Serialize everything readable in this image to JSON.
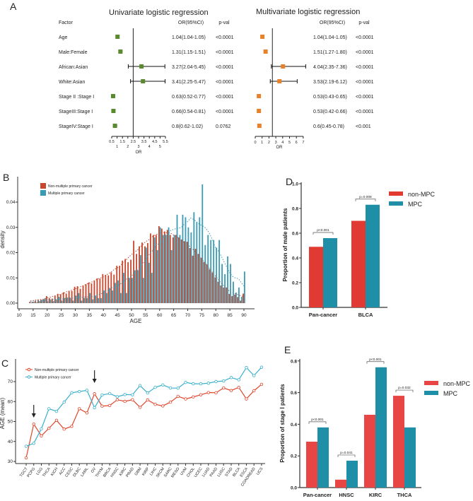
{
  "panel_letters": [
    "A",
    "B",
    "C",
    "D",
    "E"
  ],
  "chart_data": [
    {
      "id": "A-univariate",
      "type": "forest",
      "title": "Univariate logistic regression",
      "title_color": "#3f7f2f",
      "marker_color": "#5a8a2e",
      "headers": {
        "factor": "Factor",
        "or": "OR(95%CI)",
        "p": "p-val"
      },
      "xlabel": "OR",
      "xticks": [
        "0.5",
        "1",
        "1.5",
        "2",
        "2.5",
        "3",
        "3.5",
        "4",
        "4.5",
        "5",
        "5.5"
      ],
      "xlim": [
        0.5,
        5.5
      ],
      "reference_line": 2.5,
      "rows": [
        {
          "factor": "Age",
          "or": 1.04,
          "lo": 1.04,
          "hi": 1.05,
          "or_text": "1.04(1.04-1.05)",
          "p": "<0.0001"
        },
        {
          "factor": "Male:Female",
          "or": 1.31,
          "lo": 1.15,
          "hi": 1.51,
          "or_text": "1.31(1.15-1.51)",
          "p": "<0.0001"
        },
        {
          "factor": "African:Asian",
          "or": 3.27,
          "lo": 2.04,
          "hi": 5.45,
          "or_text": "3.27(2.04-5.45)",
          "p": "<0.0001"
        },
        {
          "factor": "White:Asian",
          "or": 3.41,
          "lo": 2.25,
          "hi": 5.47,
          "or_text": "3.41(2.25-5.47)",
          "p": "<0.0001"
        },
        {
          "factor": "Stage II :Stage I",
          "or": 0.63,
          "lo": 0.52,
          "hi": 0.77,
          "or_text": "0.63(0.52-0.77)",
          "p": "<0.0001"
        },
        {
          "factor": "StageIII:Stage I",
          "or": 0.66,
          "lo": 0.54,
          "hi": 0.81,
          "or_text": "0.66(0.54-0.81)",
          "p": "<0.0001"
        },
        {
          "factor": "StageIV:Stage I",
          "or": 0.8,
          "lo": 0.62,
          "hi": 1.02,
          "or_text": "0.8(0.62-1.02)",
          "p": "0.0762"
        }
      ]
    },
    {
      "id": "A-multivariate",
      "type": "forest",
      "title": "Multivariate logistic regression",
      "title_color": "#e8703a",
      "marker_color": "#e8822a",
      "headers": {
        "or": "OR(95%CI)",
        "p": "p-val"
      },
      "xlabel": "OR",
      "xticks": [
        "0",
        "1",
        "2",
        "3",
        "4",
        "5",
        "6",
        "7"
      ],
      "xlim": [
        0,
        7
      ],
      "reference_line": 2.5,
      "rows": [
        {
          "or": 1.04,
          "lo": 1.04,
          "hi": 1.05,
          "or_text": "1.04(1.04-1.05)",
          "p": "<0.0001"
        },
        {
          "or": 1.51,
          "lo": 1.27,
          "hi": 1.8,
          "or_text": "1.51(1.27-1.80)",
          "p": "<0.0001"
        },
        {
          "or": 4.04,
          "lo": 2.35,
          "hi": 7.36,
          "or_text": "4.04(2.35-7.36)",
          "p": "<0.0001"
        },
        {
          "or": 3.53,
          "lo": 2.19,
          "hi": 6.12,
          "or_text": "3.53(2.19-6.12)",
          "p": "<0.0001"
        },
        {
          "or": 0.53,
          "lo": 0.43,
          "hi": 0.65,
          "or_text": "0.53(0.43-0.65)",
          "p": "<0.0001"
        },
        {
          "or": 0.53,
          "lo": 0.42,
          "hi": 0.66,
          "or_text": "0.53(0.42-0.66)",
          "p": "<0.0001"
        },
        {
          "or": 0.6,
          "lo": 0.45,
          "hi": 0.78,
          "or_text": "0.6(0.45-0.78)",
          "p": "<0.001"
        }
      ]
    },
    {
      "id": "B",
      "type": "bar",
      "xlabel": "AGE",
      "ylabel": "density",
      "xlim": [
        10,
        92
      ],
      "ylim": [
        0,
        0.047
      ],
      "xticks": [
        10,
        15,
        20,
        25,
        30,
        35,
        40,
        45,
        50,
        55,
        60,
        65,
        70,
        75,
        80,
        85,
        90
      ],
      "yticks": [
        "0.00",
        "0.01",
        "0.02",
        "0.03",
        "0.04"
      ],
      "ytick_values": [
        0,
        0.01,
        0.02,
        0.03,
        0.04
      ],
      "legend_position": "top-left",
      "x_start": 14,
      "series": [
        {
          "name": "Non-multiple primary cancer",
          "color": "#c8462c",
          "values": [
            0.0005,
            0.0005,
            0.001,
            0.0013,
            0.0013,
            0.0015,
            0.0028,
            0.002,
            0.0018,
            0.003,
            0.0037,
            0.0035,
            0.0043,
            0.0038,
            0.0047,
            0.0048,
            0.0065,
            0.0067,
            0.0057,
            0.007,
            0.0075,
            0.0082,
            0.0078,
            0.0088,
            0.0098,
            0.0097,
            0.0115,
            0.0112,
            0.011,
            0.0122,
            0.0113,
            0.0148,
            0.0148,
            0.0168,
            0.0175,
            0.0162,
            0.0172,
            0.0247,
            0.0195,
            0.0225,
            0.024,
            0.0225,
            0.0238,
            0.0276,
            0.027,
            0.027,
            0.0305,
            0.0295,
            0.0284,
            0.029,
            0.027,
            0.026,
            0.027,
            0.026,
            0.0252,
            0.0245,
            0.0243,
            0.0218,
            0.0188,
            0.0215,
            0.0195,
            0.018,
            0.0163,
            0.0153,
            0.0134,
            0.012,
            0.0102,
            0.0085,
            0.007,
            0.0062,
            0.0062,
            0.0037,
            0.0028,
            0.0034,
            0.0024,
            0.001,
            0.0038
          ]
        },
        {
          "name": "Multiple primary cancer",
          "color": "#3a9bb5",
          "values": [
            0.0003,
            0.0005,
            0.0003,
            0.0008,
            0.0013,
            0.002,
            0.0008,
            0.0012,
            0.0008,
            0.0015,
            0.0025,
            0.001,
            0.002,
            0.002,
            0.002,
            0.001,
            0.003,
            0.004,
            0.001,
            0.002,
            0.002,
            0.004,
            0.0015,
            0.003,
            0.002,
            0.002,
            0.005,
            0.004,
            0.006,
            0.005,
            0.008,
            0.009,
            0.004,
            0.012,
            0.004,
            0.01,
            0.01,
            0.013,
            0.013,
            0.019,
            0.01,
            0.022,
            0.016,
            0.012,
            0.026,
            0.021,
            0.03,
            0.027,
            0.027,
            0.03,
            0.021,
            0.027,
            0.035,
            0.027,
            0.035,
            0.034,
            0.03,
            0.028,
            0.036,
            0.032,
            0.034,
            0.047,
            0.023,
            0.027,
            0.025,
            0.025,
            0.022,
            0.025,
            0.0155,
            0.0115,
            0.0185,
            0.0155,
            0.0085,
            0.0042,
            0.0062,
            0.0025,
            0.0125
          ]
        }
      ]
    },
    {
      "id": "C",
      "type": "line",
      "ylabel": "AGE (mean)",
      "ylim": [
        30,
        78
      ],
      "yticks": [
        30,
        40,
        50,
        60,
        70
      ],
      "legend_position": "top-left",
      "categories": [
        "TGCT",
        "PCPG",
        "LGG",
        "THCA",
        "KICH",
        "ACC",
        "CESC",
        "DLBC",
        "LAML",
        "OV",
        "THYM",
        "BRCA",
        "HNSC",
        "KIRC",
        "PRAD",
        "GBM",
        "KIRP",
        "LIHC",
        "SKCM",
        "SARC",
        "MESO",
        "UVM",
        "CHOL",
        "UCEC",
        "LUAD",
        "PAAD",
        "LUSC",
        "STAD",
        "BLCA",
        "ESCA",
        "COADREAD",
        "UCS"
      ],
      "annotations": [
        {
          "type": "arrow",
          "category": "PCPG"
        },
        {
          "type": "arrow",
          "category": "OV"
        }
      ],
      "series": [
        {
          "name": "Non-multiple primary cancer",
          "color": "#e0452b",
          "values": [
            31.8,
            48.7,
            42.8,
            46.6,
            50.6,
            46.2,
            47.6,
            56.4,
            54.3,
            63.9,
            57.7,
            58.0,
            60.9,
            60.1,
            60.9,
            57.1,
            60.8,
            58.6,
            57.8,
            59.7,
            62.6,
            61.3,
            62.3,
            63.4,
            64.5,
            64.4,
            66.8,
            65.5,
            67.1,
            61.3,
            65.4,
            68.6
          ]
        },
        {
          "name": "Multiple primary cancer",
          "color": "#3ab0cc",
          "values": [
            37.6,
            39.1,
            46.3,
            56.4,
            55.1,
            59.7,
            64.4,
            65.0,
            65.6,
            56.9,
            63.3,
            64.0,
            62.4,
            63.5,
            63.4,
            68.0,
            64.3,
            67.1,
            68.3,
            66.8,
            66.7,
            69.6,
            68.9,
            68.9,
            69.2,
            70.0,
            70.3,
            72.0,
            70.9,
            77.0,
            73.0,
            77.2
          ]
        }
      ]
    },
    {
      "id": "D",
      "type": "bar",
      "ylabel": "Proportion of male patients",
      "ylim": [
        0,
        1.0
      ],
      "yticks": [
        "0.0",
        "0.2",
        "0.4",
        "0.6",
        "0.8",
        "1.0"
      ],
      "ytick_values": [
        0,
        0.2,
        0.4,
        0.6,
        0.8,
        1.0
      ],
      "legend_position": "right",
      "categories": [
        "Pan-cancer",
        "BLCA"
      ],
      "pvalues": [
        "p<0.001",
        "p=0.008"
      ],
      "series": [
        {
          "name": "non-MPC",
          "color": "#e03a33",
          "values": [
            0.49,
            0.7
          ]
        },
        {
          "name": "MPC",
          "color": "#1f8fa8",
          "values": [
            0.56,
            0.83
          ]
        }
      ]
    },
    {
      "id": "E",
      "type": "bar",
      "ylabel": "Proportion of stage Ⅰ patients",
      "ylim": [
        0,
        0.8
      ],
      "yticks": [
        "0.0",
        "0.2",
        "0.4",
        "0.6",
        "0.8"
      ],
      "ytick_values": [
        0,
        0.2,
        0.4,
        0.6,
        0.8
      ],
      "legend_position": "right",
      "categories": [
        "Pan-cancer",
        "HNSC",
        "KIRC",
        "THCA"
      ],
      "pvalues": [
        "p<0.001",
        "p=0.041",
        "p<0.001",
        "p=0.032"
      ],
      "series": [
        {
          "name": "non-MPC",
          "color": "#e84545",
          "values": [
            0.29,
            0.05,
            0.46,
            0.58
          ]
        },
        {
          "name": "MPC",
          "color": "#1f8fa8",
          "values": [
            0.38,
            0.17,
            0.76,
            0.38
          ]
        }
      ]
    }
  ]
}
